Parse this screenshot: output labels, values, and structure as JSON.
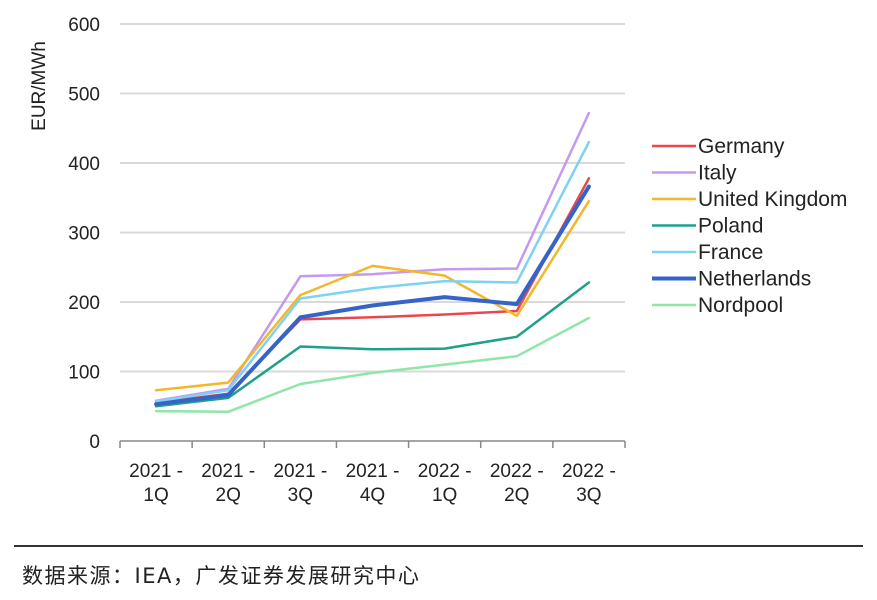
{
  "chart_data": {
    "type": "line",
    "ylabel": "EUR/MWh",
    "xlabel": "",
    "ylim": [
      0,
      600
    ],
    "yticks": [
      "0",
      "100",
      "200",
      "300",
      "400",
      "500",
      "600"
    ],
    "grid": true,
    "legend_position": "right",
    "categories": [
      [
        "2021 -",
        "1Q"
      ],
      [
        "2021 -",
        "2Q"
      ],
      [
        "2021 -",
        "3Q"
      ],
      [
        "2021 -",
        "4Q"
      ],
      [
        "2022 -",
        "1Q"
      ],
      [
        "2022 -",
        "2Q"
      ],
      [
        "2022 -",
        "3Q"
      ]
    ],
    "series": [
      {
        "name": "Germany",
        "color": "#e8484c",
        "values": [
          55,
          68,
          175,
          178,
          182,
          187,
          378
        ]
      },
      {
        "name": "Italy",
        "color": "#c39af0",
        "values": [
          58,
          75,
          237,
          240,
          247,
          248,
          472
        ]
      },
      {
        "name": "United Kingdom",
        "color": "#f3b72a",
        "values": [
          73,
          84,
          210,
          252,
          238,
          180,
          345
        ]
      },
      {
        "name": "Poland",
        "color": "#1fa08b",
        "values": [
          50,
          62,
          136,
          132,
          133,
          150,
          228
        ]
      },
      {
        "name": "France",
        "color": "#7fd2f2",
        "values": [
          57,
          73,
          205,
          220,
          230,
          228,
          430
        ]
      },
      {
        "name": "Netherlands",
        "color": "#3563c7",
        "values": [
          53,
          66,
          178,
          195,
          207,
          197,
          366
        ]
      },
      {
        "name": "Nordpool",
        "color": "#8fe6a8",
        "values": [
          43,
          42,
          82,
          98,
          110,
          122,
          177
        ]
      }
    ]
  },
  "source": "数据来源：IEA，广发证券发展研究中心"
}
